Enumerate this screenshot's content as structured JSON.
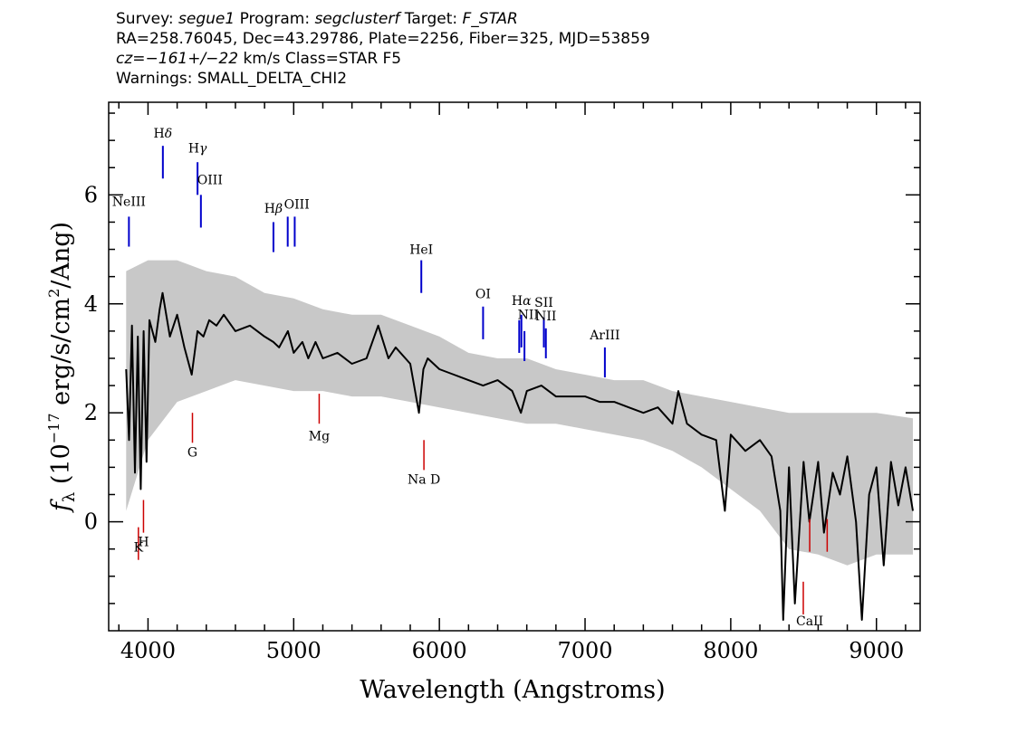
{
  "header": {
    "line1": {
      "survey_label": "Survey: ",
      "survey": "segue1",
      "program_label": " Program: ",
      "program": "segclusterf",
      "target_label": " Target: ",
      "target": "F_STAR"
    },
    "line2": "RA=258.76045, Dec=43.29786, Plate=2256, Fiber=325, MJD=53859",
    "line3": {
      "cz_label": "cz=",
      "cz": "−161+/−22",
      "rest": " km/s Class=STAR F5"
    },
    "line4": "Warnings: SMALL_DELTA_CHI2"
  },
  "chart_data": {
    "type": "line",
    "xlabel": "Wavelength (Angstroms)",
    "ylabel": {
      "prefix": "f",
      "sub": "λ",
      "mid": " (10",
      "exp": "−17",
      "unit": " erg/s/cm",
      "unit_exp": "2",
      "suffix": "/Ang)"
    },
    "xlim": [
      3730,
      9300
    ],
    "ylim": [
      -2.0,
      7.7
    ],
    "x_ticks": [
      4000,
      5000,
      6000,
      7000,
      8000,
      9000
    ],
    "x_tick_labels": [
      "4000",
      "5000",
      "6000",
      "7000",
      "8000",
      "9000"
    ],
    "y_ticks": [
      0,
      2,
      4,
      6
    ],
    "y_tick_labels": [
      "0",
      "2",
      "4",
      "6"
    ],
    "colors": {
      "flux": "#000000",
      "error_band": "#c8c8c8",
      "emission_lines": "#0000cc",
      "absorption_lines": "#cc0000"
    },
    "series": [
      {
        "role": "smoothed flux (black)",
        "x": [
          3850,
          3870,
          3890,
          3910,
          3930,
          3950,
          3970,
          3990,
          4010,
          4050,
          4080,
          4100,
          4150,
          4200,
          4250,
          4300,
          4340,
          4380,
          4420,
          4470,
          4520,
          4600,
          4700,
          4800,
          4860,
          4900,
          4960,
          5000,
          5060,
          5100,
          5150,
          5200,
          5300,
          5400,
          5500,
          5580,
          5650,
          5700,
          5800,
          5860,
          5890,
          5920,
          6000,
          6100,
          6200,
          6300,
          6400,
          6500,
          6560,
          6600,
          6700,
          6800,
          6900,
          7000,
          7100,
          7200,
          7300,
          7400,
          7500,
          7600,
          7640,
          7700,
          7800,
          7900,
          7960,
          8000,
          8100,
          8200,
          8280,
          8340,
          8360,
          8400,
          8440,
          8500,
          8540,
          8600,
          8640,
          8700,
          8750,
          8800,
          8860,
          8900,
          8950,
          9000,
          9050,
          9100,
          9150,
          9200,
          9250
        ],
        "y": [
          2.8,
          1.5,
          3.6,
          0.9,
          3.4,
          0.6,
          3.5,
          1.1,
          3.7,
          3.3,
          3.9,
          4.2,
          3.4,
          3.8,
          3.2,
          2.7,
          3.5,
          3.4,
          3.7,
          3.6,
          3.8,
          3.5,
          3.6,
          3.4,
          3.3,
          3.2,
          3.5,
          3.1,
          3.3,
          3.0,
          3.3,
          3.0,
          3.1,
          2.9,
          3.0,
          3.6,
          3.0,
          3.2,
          2.9,
          2.0,
          2.8,
          3.0,
          2.8,
          2.7,
          2.6,
          2.5,
          2.6,
          2.4,
          2.0,
          2.4,
          2.5,
          2.3,
          2.3,
          2.3,
          2.2,
          2.2,
          2.1,
          2.0,
          2.1,
          1.8,
          2.4,
          1.8,
          1.6,
          1.5,
          0.2,
          1.6,
          1.3,
          1.5,
          1.2,
          0.2,
          -1.8,
          1.0,
          -1.5,
          1.1,
          0.0,
          1.1,
          -0.2,
          0.9,
          0.5,
          1.2,
          0.0,
          -1.8,
          0.5,
          1.0,
          -0.8,
          1.1,
          0.3,
          1.0,
          0.2
        ]
      },
      {
        "role": "error band upper (grey)",
        "x": [
          3850,
          4000,
          4200,
          4400,
          4600,
          4800,
          5000,
          5200,
          5400,
          5600,
          5800,
          6000,
          6200,
          6400,
          6600,
          6800,
          7000,
          7200,
          7400,
          7600,
          7800,
          8000,
          8200,
          8400,
          8600,
          8800,
          9000,
          9250
        ],
        "y": [
          4.6,
          4.8,
          4.8,
          4.6,
          4.5,
          4.2,
          4.1,
          3.9,
          3.8,
          3.8,
          3.6,
          3.4,
          3.1,
          3.0,
          3.0,
          2.8,
          2.7,
          2.6,
          2.6,
          2.4,
          2.3,
          2.2,
          2.1,
          2.0,
          2.0,
          2.0,
          2.0,
          1.9
        ]
      },
      {
        "role": "error band lower (grey)",
        "x": [
          3850,
          4000,
          4200,
          4400,
          4600,
          4800,
          5000,
          5200,
          5400,
          5600,
          5800,
          6000,
          6200,
          6400,
          6600,
          6800,
          7000,
          7200,
          7400,
          7600,
          7800,
          8000,
          8200,
          8400,
          8600,
          8800,
          9000,
          9250
        ],
        "y": [
          0.2,
          1.5,
          2.2,
          2.4,
          2.6,
          2.5,
          2.4,
          2.4,
          2.3,
          2.3,
          2.2,
          2.1,
          2.0,
          1.9,
          1.8,
          1.8,
          1.7,
          1.6,
          1.5,
          1.3,
          1.0,
          0.6,
          0.2,
          -0.5,
          -0.6,
          -0.8,
          -0.6,
          -0.6
        ]
      }
    ],
    "line_markers": [
      {
        "label": "NeIII",
        "sub": "",
        "x": 3869,
        "y_top": 5.6,
        "y_bottom": 5.05,
        "kind": "emission",
        "label_y": 5.8
      },
      {
        "label": "H",
        "sub": "δ",
        "x": 4102,
        "y_top": 6.9,
        "y_bottom": 6.3,
        "kind": "emission",
        "label_y": 7.05
      },
      {
        "label": "H",
        "sub": "γ",
        "x": 4340,
        "y_top": 6.6,
        "y_bottom": 6.0,
        "kind": "emission",
        "label_y": 6.78
      },
      {
        "label": "OIII",
        "sub": "",
        "x": 4363,
        "y_top": 6.0,
        "y_bottom": 5.4,
        "kind": "emission",
        "label_y": 6.2
      },
      {
        "label": "H",
        "sub": "β",
        "x": 4861,
        "y_top": 5.5,
        "y_bottom": 4.95,
        "kind": "emission",
        "label_y": 5.67
      },
      {
        "label": "OIII",
        "sub": "",
        "x": 4959,
        "y_top": 5.6,
        "y_bottom": 5.05,
        "kind": "emission",
        "label_y": 5.75
      },
      {
        "label": "",
        "sub": "",
        "x": 5007,
        "y_top": 5.6,
        "y_bottom": 5.05,
        "kind": "emission",
        "label_y": 5.75
      },
      {
        "label": "HeI",
        "sub": "",
        "x": 5876,
        "y_top": 4.8,
        "y_bottom": 4.2,
        "kind": "emission",
        "label_y": 4.92
      },
      {
        "label": "OI",
        "sub": "",
        "x": 6300,
        "y_top": 3.95,
        "y_bottom": 3.35,
        "kind": "emission",
        "label_y": 4.1
      },
      {
        "label": "NII",
        "sub": "",
        "x": 6548,
        "y_top": 3.7,
        "y_bottom": 3.1,
        "kind": "emission",
        "label_y": 3.72
      },
      {
        "label": "H",
        "sub": "α",
        "x": 6563,
        "y_top": 3.8,
        "y_bottom": 3.2,
        "kind": "emission",
        "label_y": 3.98
      },
      {
        "label": "",
        "sub": "",
        "x": 6584,
        "y_top": 3.5,
        "y_bottom": 2.95,
        "kind": "emission",
        "label_y": 3.6
      },
      {
        "label": "SII",
        "sub": "",
        "x": 6717,
        "y_top": 3.75,
        "y_bottom": 3.2,
        "kind": "emission",
        "label_y": 3.95
      },
      {
        "label": "NII",
        "sub": "",
        "x": 6731,
        "y_top": 3.55,
        "y_bottom": 3.0,
        "kind": "emission",
        "label_y": 3.7
      },
      {
        "label": "ArIII",
        "sub": "",
        "x": 7136,
        "y_top": 3.2,
        "y_bottom": 2.65,
        "kind": "emission",
        "label_y": 3.35
      },
      {
        "label": "K",
        "sub": "",
        "x": 3934,
        "y_top": -0.1,
        "y_bottom": -0.7,
        "kind": "absorption",
        "label_y": -0.55
      },
      {
        "label": "H",
        "sub": "",
        "x": 3969,
        "y_top": 0.4,
        "y_bottom": -0.2,
        "kind": "absorption",
        "label_y": -0.45
      },
      {
        "label": "G",
        "sub": "",
        "x": 4305,
        "y_top": 2.0,
        "y_bottom": 1.45,
        "kind": "absorption",
        "label_y": 1.2
      },
      {
        "label": "Mg",
        "sub": "",
        "x": 5175,
        "y_top": 2.35,
        "y_bottom": 1.8,
        "kind": "absorption",
        "label_y": 1.5
      },
      {
        "label": "Na D",
        "sub": "",
        "x": 5894,
        "y_top": 1.5,
        "y_bottom": 0.95,
        "kind": "absorption",
        "label_y": 0.7
      },
      {
        "label": "",
        "sub": "",
        "x": 8498,
        "y_top": -1.1,
        "y_bottom": -1.7,
        "kind": "absorption",
        "label_y": -1.9
      },
      {
        "label": "CaII",
        "sub": "",
        "x": 8542,
        "y_top": 0.05,
        "y_bottom": -0.55,
        "kind": "absorption",
        "label_y": -1.9
      },
      {
        "label": "",
        "sub": "",
        "x": 8662,
        "y_top": 0.05,
        "y_bottom": -0.55,
        "kind": "absorption",
        "label_y": -1.9
      }
    ]
  }
}
